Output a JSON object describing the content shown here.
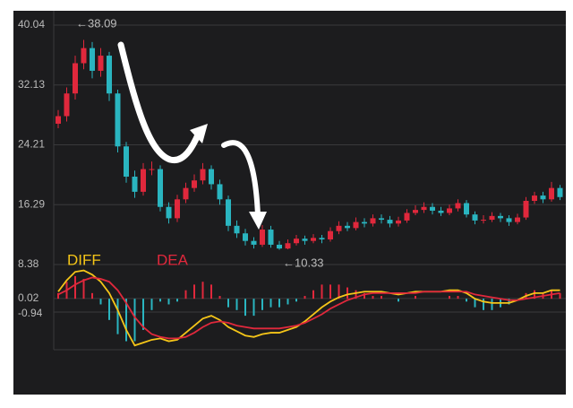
{
  "chart_data": [
    {
      "type": "candlestick",
      "open": [
        27,
        28,
        31,
        35,
        37,
        34,
        36,
        31,
        24,
        20,
        18,
        21,
        21,
        16,
        14.5,
        17,
        18.5,
        19.5,
        21,
        19,
        17,
        13.5,
        12.5,
        11.5,
        11,
        13,
        11,
        10.5,
        11.2,
        11.8,
        11.5,
        11.9,
        11.7,
        12.8,
        13.5,
        13.2,
        14,
        13.8,
        14.5,
        14.3,
        13.8,
        14.2,
        15.2,
        15.6,
        16,
        15.5,
        15.2,
        15.8,
        16.5,
        15,
        14.2,
        14.3,
        14.8,
        14.5,
        14,
        14.6,
        16.8,
        17.5,
        17,
        18.5
      ],
      "high": [
        28.8,
        31.8,
        36,
        38.09,
        37.8,
        37,
        36.5,
        31.5,
        24.6,
        20.8,
        21.8,
        22,
        21.5,
        16.6,
        17.6,
        19.2,
        20.3,
        21.8,
        21.5,
        19.6,
        17.5,
        14.2,
        13.1,
        12,
        13.6,
        13.5,
        11.5,
        11.7,
        12.3,
        12.2,
        12.4,
        12.3,
        13.3,
        14.1,
        14,
        14.6,
        14.5,
        15,
        15,
        14.8,
        14.7,
        15.7,
        16.2,
        16.6,
        16.5,
        16,
        16.3,
        17,
        16.9,
        15.4,
        14.9,
        15.3,
        15.2,
        14.9,
        15.1,
        17.3,
        18,
        18,
        19.3,
        18.9
      ],
      "low": [
        26.4,
        27.3,
        30.2,
        34.2,
        33,
        33.2,
        30,
        23.2,
        19.2,
        17.2,
        17.5,
        20.2,
        15.4,
        13.8,
        14,
        16.5,
        18,
        19,
        18.3,
        16.3,
        12.8,
        11.9,
        10.9,
        10.5,
        10.7,
        10.6,
        10.33,
        10.4,
        10.9,
        11,
        11.2,
        11.2,
        11.4,
        12.4,
        12.8,
        12.9,
        13.3,
        13.4,
        13.8,
        13.3,
        13.4,
        13.9,
        14.9,
        15.2,
        15,
        14.8,
        14.9,
        15.4,
        14.6,
        13.7,
        13.8,
        14,
        14,
        13.5,
        13.7,
        14.3,
        16.4,
        16.5,
        16.7,
        16.9
      ],
      "close": [
        28,
        31,
        35,
        37,
        34,
        36,
        31,
        24,
        20,
        18,
        21,
        21,
        16,
        14.5,
        17,
        18.5,
        19.5,
        21,
        19,
        17,
        13.5,
        12.5,
        11.5,
        11,
        13,
        11,
        10.5,
        11.2,
        11.8,
        11.5,
        11.9,
        11.7,
        12.8,
        13.5,
        13.2,
        14,
        13.8,
        14.5,
        14.3,
        13.8,
        14.2,
        15.2,
        15.6,
        16,
        15.5,
        15.2,
        15.8,
        16.5,
        15,
        14.2,
        14.3,
        14.8,
        14.5,
        14,
        14.6,
        16.8,
        17.5,
        17,
        18.5,
        17.3
      ],
      "up_color": "#e0283c",
      "down_color": "#2ab5c0",
      "ylim": [
        8.38,
        40.04
      ],
      "yticks": [
        40.04,
        32.13,
        24.21,
        16.29,
        8.38
      ],
      "annotations": [
        "←38.09",
        "←10.33"
      ]
    },
    {
      "type": "macd",
      "series": [
        {
          "name": "DIFF",
          "color": "#f5c518",
          "values": [
            0.5,
            1.3,
            1.9,
            2.0,
            1.7,
            1.2,
            0.4,
            -0.8,
            -2.2,
            -3.3,
            -3.1,
            -2.9,
            -2.8,
            -3.0,
            -2.9,
            -2.4,
            -1.9,
            -1.4,
            -1.2,
            -1.5,
            -2.0,
            -2.3,
            -2.6,
            -2.7,
            -2.5,
            -2.4,
            -2.4,
            -2.2,
            -2.0,
            -1.6,
            -1.1,
            -0.6,
            -0.2,
            0.1,
            0.3,
            0.4,
            0.5,
            0.5,
            0.5,
            0.4,
            0.3,
            0.4,
            0.5,
            0.5,
            0.5,
            0.5,
            0.6,
            0.6,
            0.4,
            0.0,
            -0.2,
            -0.3,
            -0.3,
            -0.3,
            -0.1,
            0.2,
            0.4,
            0.4,
            0.6,
            0.6
          ]
        },
        {
          "name": "DEA",
          "color": "#e0283c",
          "values": [
            0.3,
            0.6,
            1.0,
            1.3,
            1.5,
            1.4,
            1.2,
            0.6,
            -0.3,
            -1.3,
            -2.0,
            -2.5,
            -2.7,
            -2.8,
            -2.8,
            -2.7,
            -2.4,
            -2.0,
            -1.7,
            -1.6,
            -1.7,
            -1.9,
            -2.0,
            -2.1,
            -2.1,
            -2.1,
            -2.1,
            -2.0,
            -1.9,
            -1.7,
            -1.4,
            -1.1,
            -0.7,
            -0.4,
            -0.1,
            0.1,
            0.3,
            0.4,
            0.4,
            0.4,
            0.4,
            0.4,
            0.4,
            0.5,
            0.5,
            0.5,
            0.5,
            0.5,
            0.5,
            0.3,
            0.2,
            0.1,
            0.0,
            -0.1,
            -0.1,
            0.0,
            0.1,
            0.2,
            0.3,
            0.4
          ]
        }
      ],
      "hist": [
        0.4,
        1.2,
        1.6,
        1.4,
        0.4,
        -0.4,
        -1.5,
        -2.5,
        -3.0,
        -3.0,
        -2.2,
        -0.8,
        -0.2,
        -0.4,
        -0.2,
        0.6,
        1.0,
        1.2,
        1.0,
        0.2,
        -0.6,
        -0.8,
        -1.2,
        -1.2,
        -0.8,
        -0.6,
        -0.6,
        -0.4,
        -0.2,
        0.2,
        0.6,
        1.0,
        1.0,
        1.0,
        0.8,
        0.6,
        0.4,
        0.2,
        0.2,
        0.0,
        -0.2,
        0.0,
        0.2,
        0.0,
        0.0,
        0.0,
        0.2,
        0.2,
        -0.2,
        -0.6,
        -0.8,
        -0.8,
        -0.6,
        -0.4,
        0.0,
        0.4,
        0.6,
        0.4,
        0.6,
        0.4
      ],
      "hist_up_color": "#e0283c",
      "hist_down_color": "#2ab5c0",
      "ylim": [
        -3.6,
        2.1
      ],
      "yticks": [
        0.02,
        -0.94
      ]
    }
  ]
}
